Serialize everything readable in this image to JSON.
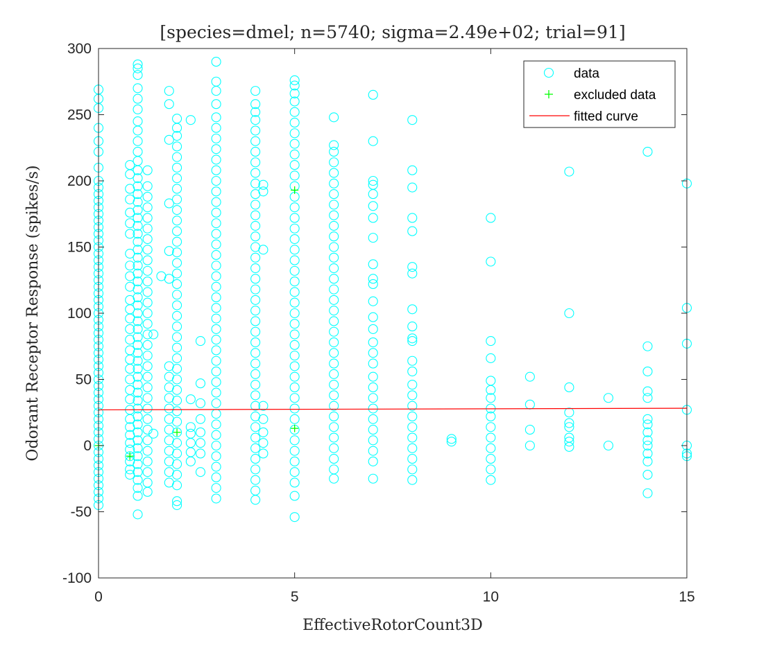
{
  "chart_data": {
    "type": "scatter",
    "title": "[species=dmel; n=5740; sigma=2.49e+02; trial=91]",
    "xlabel": "EffectiveRotorCount3D",
    "ylabel": "Odorant Receptor Response (spikes/s)",
    "xlim": [
      0,
      15
    ],
    "ylim": [
      -100,
      300
    ],
    "xticks": [
      0,
      5,
      10,
      15
    ],
    "yticks": [
      -100,
      -50,
      0,
      50,
      100,
      150,
      200,
      250,
      300
    ],
    "grid": false,
    "legend_position": "top-right",
    "colors": {
      "data": "#00ffff",
      "excluded": "#00ff00",
      "fit": "#ff0000",
      "axis": "#262626"
    },
    "series": [
      {
        "name": "data",
        "marker": "circle",
        "columns": [
          {
            "x": 0,
            "y": [
              -45,
              -40,
              -35,
              -30,
              -25,
              -20,
              -15,
              -10,
              -5,
              0,
              5,
              10,
              15,
              20,
              25,
              30,
              35,
              40,
              45,
              50,
              55,
              60,
              65,
              70,
              75,
              80,
              85,
              90,
              95,
              100,
              105,
              110,
              115,
              120,
              125,
              130,
              135,
              140,
              145,
              150,
              155,
              160,
              165,
              170,
              175,
              180,
              185,
              190,
              195,
              200,
              210,
              222,
              230,
              240,
              255,
              262,
              269
            ]
          },
          {
            "x": 0.8,
            "y": [
              -22,
              -18,
              -12,
              -8,
              -3,
              2,
              8,
              14,
              20,
              27,
              35,
              42,
              50,
              58,
              65,
              72,
              80,
              88,
              96,
              103,
              110,
              120,
              128,
              136,
              145,
              160,
              168,
              176,
              186,
              194,
              205,
              212
            ]
          },
          {
            "x": 1,
            "y": [
              -52,
              -38,
              -32,
              -26,
              -20,
              -14,
              -8,
              -2,
              4,
              10,
              16,
              22,
              28,
              34,
              40,
              46,
              52,
              58,
              64,
              70,
              76,
              82,
              88,
              94,
              100,
              106,
              112,
              118,
              124,
              130,
              136,
              142,
              148,
              154,
              160,
              166,
              172,
              178,
              184,
              190,
              196,
              202,
              208,
              215,
              222,
              230,
              238,
              245,
              254,
              262,
              270,
              280,
              285,
              288
            ]
          },
          {
            "x": 1.25,
            "y": [
              -35,
              -28,
              -20,
              -12,
              -4,
              4,
              12,
              20,
              28,
              36,
              44,
              52,
              60,
              68,
              76,
              84,
              92,
              100,
              108,
              116,
              124,
              132,
              140,
              148,
              156,
              164,
              172,
              180,
              188,
              196,
              208
            ]
          },
          {
            "x": 1.4,
            "y": [
              9,
              84
            ]
          },
          {
            "x": 1.6,
            "y": [
              128
            ]
          },
          {
            "x": 1.8,
            "y": [
              -28,
              -20,
              -12,
              -4,
              4,
              12,
              20,
              28,
              36,
              44,
              52,
              60,
              126,
              147,
              183,
              231,
              258,
              268
            ]
          },
          {
            "x": 2,
            "y": [
              -45,
              -42,
              -30,
              -22,
              -14,
              -6,
              2,
              10,
              18,
              26,
              34,
              42,
              50,
              58,
              66,
              74,
              82,
              90,
              98,
              106,
              114,
              122,
              130,
              138,
              146,
              154,
              162,
              170,
              178,
              186,
              194,
              202,
              210,
              218,
              226,
              234,
              240,
              247
            ]
          },
          {
            "x": 2.35,
            "y": [
              -12,
              -5,
              2,
              9,
              14,
              35,
              246
            ]
          },
          {
            "x": 2.6,
            "y": [
              -20,
              -6,
              2,
              10,
              20,
              32,
              47,
              79
            ]
          },
          {
            "x": 3,
            "y": [
              -40,
              -32,
              -24,
              -16,
              -8,
              0,
              8,
              16,
              24,
              32,
              40,
              48,
              56,
              64,
              72,
              80,
              88,
              96,
              104,
              112,
              120,
              128,
              136,
              144,
              152,
              160,
              168,
              176,
              184,
              192,
              200,
              208,
              216,
              224,
              232,
              240,
              248,
              258,
              268,
              275,
              290
            ]
          },
          {
            "x": 4,
            "y": [
              -41,
              -34,
              -26,
              -18,
              -10,
              -2,
              6,
              14,
              22,
              30,
              38,
              46,
              54,
              62,
              70,
              78,
              86,
              94,
              102,
              110,
              118,
              126,
              134,
              142,
              150,
              158,
              166,
              174,
              182,
              190,
              198,
              206,
              214,
              222,
              230,
              238,
              246,
              252,
              258,
              268
            ]
          },
          {
            "x": 4.2,
            "y": [
              -6,
              2,
              10,
              20,
              30,
              148,
              192,
              197
            ]
          },
          {
            "x": 5,
            "y": [
              -54,
              -38,
              -28,
              -20,
              -12,
              -4,
              4,
              12,
              20,
              28,
              36,
              44,
              52,
              60,
              68,
              76,
              84,
              92,
              100,
              108,
              116,
              124,
              132,
              140,
              148,
              156,
              164,
              172,
              180,
              188,
              196,
              204,
              212,
              220,
              228,
              236,
              244,
              252,
              260,
              266,
              272,
              276
            ]
          },
          {
            "x": 6,
            "y": [
              -25,
              -18,
              -10,
              -2,
              6,
              14,
              22,
              30,
              38,
              46,
              54,
              62,
              70,
              78,
              86,
              94,
              102,
              110,
              118,
              126,
              134,
              142,
              150,
              158,
              166,
              174,
              182,
              190,
              198,
              206,
              214,
              222,
              227,
              248
            ]
          },
          {
            "x": 7,
            "y": [
              -25,
              -12,
              -4,
              4,
              12,
              20,
              28,
              36,
              44,
              52,
              62,
              70,
              78,
              88,
              97,
              109,
              122,
              126,
              137,
              157,
              172,
              181,
              190,
              197,
              200,
              230,
              265
            ]
          },
          {
            "x": 8,
            "y": [
              -26,
              -18,
              -10,
              -2,
              6,
              14,
              22,
              30,
              38,
              46,
              56,
              64,
              79,
              81,
              90,
              103,
              130,
              135,
              162,
              172,
              195,
              208,
              246
            ]
          },
          {
            "x": 9,
            "y": [
              3,
              5
            ]
          },
          {
            "x": 10,
            "y": [
              -26,
              -18,
              -10,
              -2,
              6,
              14,
              22,
              28,
              36,
              42,
              49,
              66,
              79,
              139,
              172
            ]
          },
          {
            "x": 11,
            "y": [
              0,
              12,
              31,
              52
            ]
          },
          {
            "x": 12,
            "y": [
              -1,
              3,
              6,
              14,
              17,
              25,
              44,
              100,
              207
            ]
          },
          {
            "x": 13,
            "y": [
              0,
              36
            ]
          },
          {
            "x": 14,
            "y": [
              -36,
              -22,
              -12,
              -6,
              0,
              4,
              10,
              16,
              20,
              36,
              41,
              56,
              75,
              222
            ]
          },
          {
            "x": 15,
            "y": [
              -8,
              -6,
              0,
              27,
              77,
              104,
              198
            ]
          }
        ]
      },
      {
        "name": "excluded data",
        "marker": "plus",
        "points": [
          {
            "x": 0,
            "y": 0
          },
          {
            "x": 0.8,
            "y": -8
          },
          {
            "x": 2,
            "y": 10
          },
          {
            "x": 5,
            "y": 13
          },
          {
            "x": 5,
            "y": 193
          }
        ]
      },
      {
        "name": "fitted curve",
        "marker": "line",
        "points": [
          {
            "x": 0,
            "y": 27
          },
          {
            "x": 15,
            "y": 28.2
          }
        ]
      }
    ]
  }
}
